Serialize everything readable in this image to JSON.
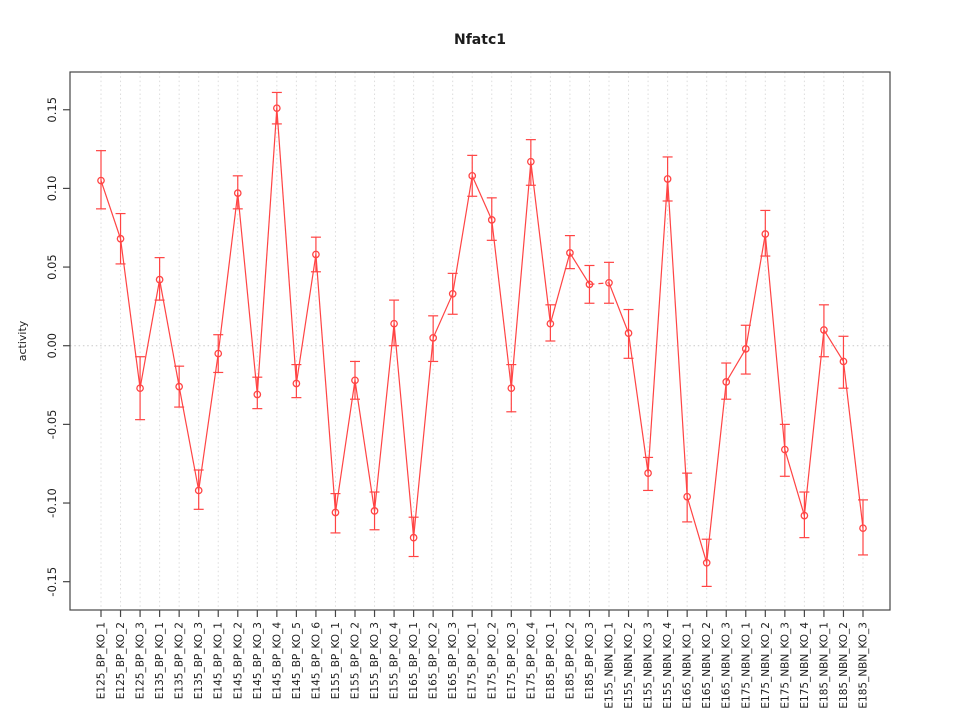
{
  "chart_data": {
    "type": "line",
    "title": "Nfatc1",
    "xlabel": "",
    "ylabel": "activity",
    "grid": "vertical-dotted",
    "zero_line": true,
    "legend": "none",
    "point_marker": "open-circle",
    "ylim": [
      -0.168,
      0.174
    ],
    "yticks": [
      -0.15,
      -0.1,
      -0.05,
      0.0,
      0.05,
      0.1,
      0.15
    ],
    "ytick_labels": [
      "-0.15",
      "-0.10",
      "-0.05",
      "0.00",
      "0.05",
      "0.10",
      "0.15"
    ],
    "x_tick_label_rotation": -90,
    "series_color": "#ff4444",
    "grid_color": "#dcdcdc",
    "zero_line_color": "#c9c9c9",
    "axis_color": "#454545",
    "text_color": "#1c1c1c",
    "dashed_segment_between": [
      "E185_BP_KO_3",
      "E155_NBN_KO_1"
    ],
    "categories": [
      "E125_BP_KO_1",
      "E125_BP_KO_2",
      "E125_BP_KO_3",
      "E135_BP_KO_1",
      "E135_BP_KO_2",
      "E135_BP_KO_3",
      "E145_BP_KO_1",
      "E145_BP_KO_2",
      "E145_BP_KO_3",
      "E145_BP_KO_4",
      "E145_BP_KO_5",
      "E145_BP_KO_6",
      "E155_BP_KO_1",
      "E155_BP_KO_2",
      "E155_BP_KO_3",
      "E155_BP_KO_4",
      "E165_BP_KO_1",
      "E165_BP_KO_2",
      "E165_BP_KO_3",
      "E175_BP_KO_1",
      "E175_BP_KO_2",
      "E175_BP_KO_3",
      "E175_BP_KO_4",
      "E185_BP_KO_1",
      "E185_BP_KO_2",
      "E185_BP_KO_3",
      "E155_NBN_KO_1",
      "E155_NBN_KO_2",
      "E155_NBN_KO_3",
      "E155_NBN_KO_4",
      "E165_NBN_KO_1",
      "E165_NBN_KO_2",
      "E165_NBN_KO_3",
      "E175_NBN_KO_1",
      "E175_NBN_KO_2",
      "E175_NBN_KO_3",
      "E175_NBN_KO_4",
      "E185_NBN_KO_1",
      "E185_NBN_KO_2",
      "E185_NBN_KO_3"
    ],
    "values": [
      0.105,
      0.068,
      -0.027,
      0.042,
      -0.026,
      -0.092,
      -0.005,
      0.097,
      -0.031,
      0.151,
      -0.024,
      0.058,
      -0.106,
      -0.022,
      -0.105,
      0.014,
      -0.122,
      0.005,
      0.033,
      0.108,
      0.08,
      -0.027,
      0.117,
      0.014,
      0.059,
      0.039,
      0.04,
      0.008,
      -0.081,
      0.106,
      -0.096,
      -0.138,
      -0.023,
      -0.002,
      0.071,
      -0.066,
      -0.108,
      0.01,
      -0.01,
      -0.116
    ],
    "error_low": [
      0.087,
      0.052,
      -0.047,
      0.029,
      -0.039,
      -0.104,
      -0.017,
      0.087,
      -0.04,
      0.141,
      -0.033,
      0.047,
      -0.119,
      -0.034,
      -0.117,
      0.0,
      -0.134,
      -0.01,
      0.02,
      0.095,
      0.067,
      -0.042,
      0.102,
      0.003,
      0.049,
      0.027,
      0.027,
      -0.008,
      -0.092,
      0.092,
      -0.112,
      -0.153,
      -0.034,
      -0.018,
      0.057,
      -0.083,
      -0.122,
      -0.007,
      -0.027,
      -0.133
    ],
    "error_high": [
      0.124,
      0.084,
      -0.007,
      0.056,
      -0.013,
      -0.079,
      0.007,
      0.108,
      -0.02,
      0.161,
      -0.012,
      0.069,
      -0.094,
      -0.01,
      -0.093,
      0.029,
      -0.109,
      0.019,
      0.046,
      0.121,
      0.094,
      -0.012,
      0.131,
      0.026,
      0.07,
      0.051,
      0.053,
      0.023,
      -0.071,
      0.12,
      -0.081,
      -0.123,
      -0.011,
      0.013,
      0.086,
      -0.05,
      -0.093,
      0.026,
      0.006,
      -0.098
    ]
  }
}
